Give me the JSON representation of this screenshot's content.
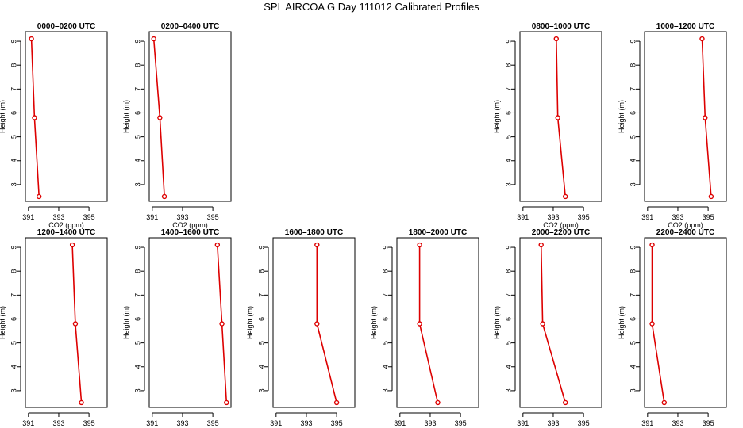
{
  "page": {
    "title": "SPL AIRCOA G  Day 111012  Calibrated Profiles"
  },
  "style": {
    "series_color": "#dd0000",
    "axis_color": "#000000"
  },
  "chart_data": [
    {
      "type": "line",
      "title": "0000–0200 UTC",
      "row": 0,
      "col": 0,
      "xlabel": "CO2 (ppm)",
      "ylabel": "Height (m)",
      "xlim": [
        390.8,
        396.2
      ],
      "ylim": [
        2.3,
        9.4
      ],
      "xticks": [
        391,
        393,
        395
      ],
      "yticks": [
        3,
        4,
        5,
        6,
        7,
        8,
        9
      ],
      "points": [
        {
          "x": 391.2,
          "y": 9.1
        },
        {
          "x": 391.4,
          "y": 5.8
        },
        {
          "x": 391.7,
          "y": 2.5
        }
      ]
    },
    {
      "type": "line",
      "title": "0200–0400 UTC",
      "row": 0,
      "col": 1,
      "xlabel": "CO2 (ppm)",
      "ylabel": "Height (m)",
      "xlim": [
        390.8,
        396.2
      ],
      "ylim": [
        2.3,
        9.4
      ],
      "xticks": [
        391,
        393,
        395
      ],
      "yticks": [
        3,
        4,
        5,
        6,
        7,
        8,
        9
      ],
      "points": [
        {
          "x": 391.1,
          "y": 9.1
        },
        {
          "x": 391.5,
          "y": 5.8
        },
        {
          "x": 391.8,
          "y": 2.5
        }
      ]
    },
    {
      "type": "line",
      "title": "0800–1000 UTC",
      "row": 0,
      "col": 4,
      "xlabel": "CO2 (ppm)",
      "ylabel": "Height (m)",
      "xlim": [
        390.8,
        396.2
      ],
      "ylim": [
        2.3,
        9.4
      ],
      "xticks": [
        391,
        393,
        395
      ],
      "yticks": [
        3,
        4,
        5,
        6,
        7,
        8,
        9
      ],
      "points": [
        {
          "x": 393.2,
          "y": 9.1
        },
        {
          "x": 393.3,
          "y": 5.8
        },
        {
          "x": 393.8,
          "y": 2.5
        }
      ]
    },
    {
      "type": "line",
      "title": "1000–1200 UTC",
      "row": 0,
      "col": 5,
      "xlabel": "CO2 (ppm)",
      "ylabel": "Height (m)",
      "xlim": [
        390.8,
        396.2
      ],
      "ylim": [
        2.3,
        9.4
      ],
      "xticks": [
        391,
        393,
        395
      ],
      "yticks": [
        3,
        4,
        5,
        6,
        7,
        8,
        9
      ],
      "points": [
        {
          "x": 394.6,
          "y": 9.1
        },
        {
          "x": 394.8,
          "y": 5.8
        },
        {
          "x": 395.2,
          "y": 2.5
        }
      ]
    },
    {
      "type": "line",
      "title": "1200–1400 UTC",
      "row": 1,
      "col": 0,
      "xlabel": "CO2 (ppm)",
      "ylabel": "Height (m)",
      "xlim": [
        390.8,
        396.2
      ],
      "ylim": [
        2.3,
        9.4
      ],
      "xticks": [
        391,
        393,
        395
      ],
      "yticks": [
        3,
        4,
        5,
        6,
        7,
        8,
        9
      ],
      "points": [
        {
          "x": 393.9,
          "y": 9.1
        },
        {
          "x": 394.1,
          "y": 5.8
        },
        {
          "x": 394.5,
          "y": 2.5
        }
      ]
    },
    {
      "type": "line",
      "title": "1400–1600 UTC",
      "row": 1,
      "col": 1,
      "xlabel": "CO2 (ppm)",
      "ylabel": "Height (m)",
      "xlim": [
        390.8,
        396.2
      ],
      "ylim": [
        2.3,
        9.4
      ],
      "xticks": [
        391,
        393,
        395
      ],
      "yticks": [
        3,
        4,
        5,
        6,
        7,
        8,
        9
      ],
      "points": [
        {
          "x": 395.3,
          "y": 9.1
        },
        {
          "x": 395.6,
          "y": 5.8
        },
        {
          "x": 395.9,
          "y": 2.5
        }
      ]
    },
    {
      "type": "line",
      "title": "1600–1800 UTC",
      "row": 1,
      "col": 2,
      "xlabel": "CO2 (ppm)",
      "ylabel": "Height (m)",
      "xlim": [
        390.8,
        396.2
      ],
      "ylim": [
        2.3,
        9.4
      ],
      "xticks": [
        391,
        393,
        395
      ],
      "yticks": [
        3,
        4,
        5,
        6,
        7,
        8,
        9
      ],
      "points": [
        {
          "x": 393.7,
          "y": 9.1
        },
        {
          "x": 393.7,
          "y": 5.8
        },
        {
          "x": 395.0,
          "y": 2.5
        }
      ]
    },
    {
      "type": "line",
      "title": "1800–2000 UTC",
      "row": 1,
      "col": 3,
      "xlabel": "CO2 (ppm)",
      "ylabel": "Height (m)",
      "xlim": [
        390.8,
        396.2
      ],
      "ylim": [
        2.3,
        9.4
      ],
      "xticks": [
        391,
        393,
        395
      ],
      "yticks": [
        3,
        4,
        5,
        6,
        7,
        8,
        9
      ],
      "points": [
        {
          "x": 392.3,
          "y": 9.1
        },
        {
          "x": 392.3,
          "y": 5.8
        },
        {
          "x": 393.5,
          "y": 2.5
        }
      ]
    },
    {
      "type": "line",
      "title": "2000–2200 UTC",
      "row": 1,
      "col": 4,
      "xlabel": "CO2 (ppm)",
      "ylabel": "Height (m)",
      "xlim": [
        390.8,
        396.2
      ],
      "ylim": [
        2.3,
        9.4
      ],
      "xticks": [
        391,
        393,
        395
      ],
      "yticks": [
        3,
        4,
        5,
        6,
        7,
        8,
        9
      ],
      "points": [
        {
          "x": 392.2,
          "y": 9.1
        },
        {
          "x": 392.3,
          "y": 5.8
        },
        {
          "x": 393.8,
          "y": 2.5
        }
      ]
    },
    {
      "type": "line",
      "title": "2200–2400 UTC",
      "row": 1,
      "col": 5,
      "xlabel": "CO2 (ppm)",
      "ylabel": "Height (m)",
      "xlim": [
        390.8,
        396.2
      ],
      "ylim": [
        2.3,
        9.4
      ],
      "xticks": [
        391,
        393,
        395
      ],
      "yticks": [
        3,
        4,
        5,
        6,
        7,
        8,
        9
      ],
      "points": [
        {
          "x": 391.3,
          "y": 9.1
        },
        {
          "x": 391.3,
          "y": 5.8
        },
        {
          "x": 392.1,
          "y": 2.5
        }
      ]
    }
  ]
}
